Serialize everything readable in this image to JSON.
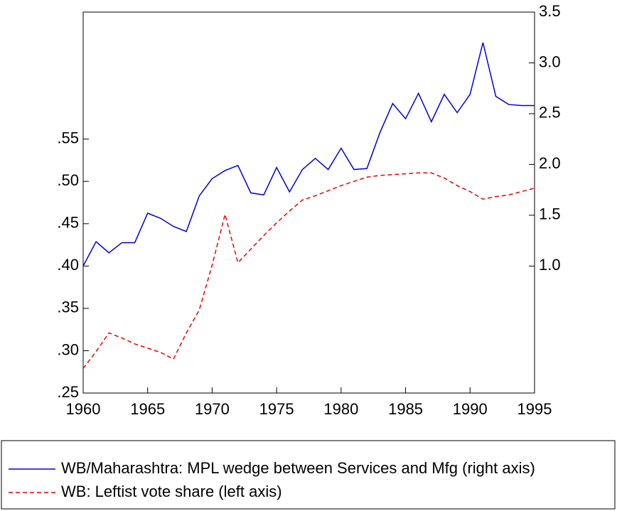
{
  "chart_data": {
    "type": "line",
    "x": [
      1960,
      1961,
      1962,
      1963,
      1964,
      1965,
      1966,
      1967,
      1968,
      1969,
      1970,
      1971,
      1972,
      1973,
      1974,
      1975,
      1976,
      1977,
      1978,
      1979,
      1980,
      1981,
      1982,
      1983,
      1984,
      1985,
      1986,
      1987,
      1988,
      1989,
      1990,
      1991,
      1992,
      1993,
      1994,
      1995
    ],
    "series": [
      {
        "name": "WB/Maharashtra: MPL wedge between Services and Mfg (right axis)",
        "color": "#0000dd",
        "dashed": false,
        "axis": "y2",
        "values": [
          1.0,
          1.24,
          1.13,
          1.23,
          1.23,
          1.52,
          1.47,
          1.39,
          1.34,
          1.69,
          1.86,
          1.94,
          1.99,
          1.72,
          1.7,
          1.97,
          1.73,
          1.95,
          2.06,
          1.95,
          2.16,
          1.95,
          1.96,
          2.31,
          2.6,
          2.45,
          2.7,
          2.42,
          2.69,
          2.51,
          2.69,
          3.2,
          2.67,
          2.59,
          2.58,
          2.58
        ]
      },
      {
        "name": "WB: Leftist vote share (left axis)",
        "color": "#ee0000",
        "dashed": true,
        "axis": "y",
        "values": [
          0.279,
          0.299,
          0.321,
          0.315,
          0.308,
          0.303,
          0.298,
          0.29,
          0.321,
          0.348,
          0.401,
          0.461,
          0.404,
          0.42,
          0.436,
          0.451,
          0.465,
          0.478,
          0.483,
          0.489,
          0.495,
          0.5,
          0.505,
          0.507,
          0.508,
          0.509,
          0.51,
          0.51,
          0.504,
          0.495,
          0.488,
          0.479,
          0.482,
          0.484,
          0.488,
          0.492
        ]
      }
    ],
    "xlim": [
      1960,
      1995
    ],
    "xticks": [
      1960,
      1965,
      1970,
      1975,
      1980,
      1985,
      1990,
      1995
    ],
    "ylim": [
      0.25,
      0.7
    ],
    "yticks": [
      {
        "value": 0.25,
        "label": ".25"
      },
      {
        "value": 0.3,
        "label": ".30"
      },
      {
        "value": 0.35,
        "label": ".35"
      },
      {
        "value": 0.4,
        "label": ".40"
      },
      {
        "value": 0.45,
        "label": ".45"
      },
      {
        "value": 0.5,
        "label": ".50"
      },
      {
        "value": 0.55,
        "label": ".55"
      }
    ],
    "y2lim": [
      -0.25,
      3.5
    ],
    "y2ticks": [
      {
        "value": 1.0,
        "label": "1.0"
      },
      {
        "value": 1.5,
        "label": "1.5"
      },
      {
        "value": 2.0,
        "label": "2.0"
      },
      {
        "value": 2.5,
        "label": "2.5"
      },
      {
        "value": 3.0,
        "label": "3.0"
      },
      {
        "value": 3.5,
        "label": "3.5"
      }
    ],
    "grid": false,
    "legend": "bottom"
  }
}
